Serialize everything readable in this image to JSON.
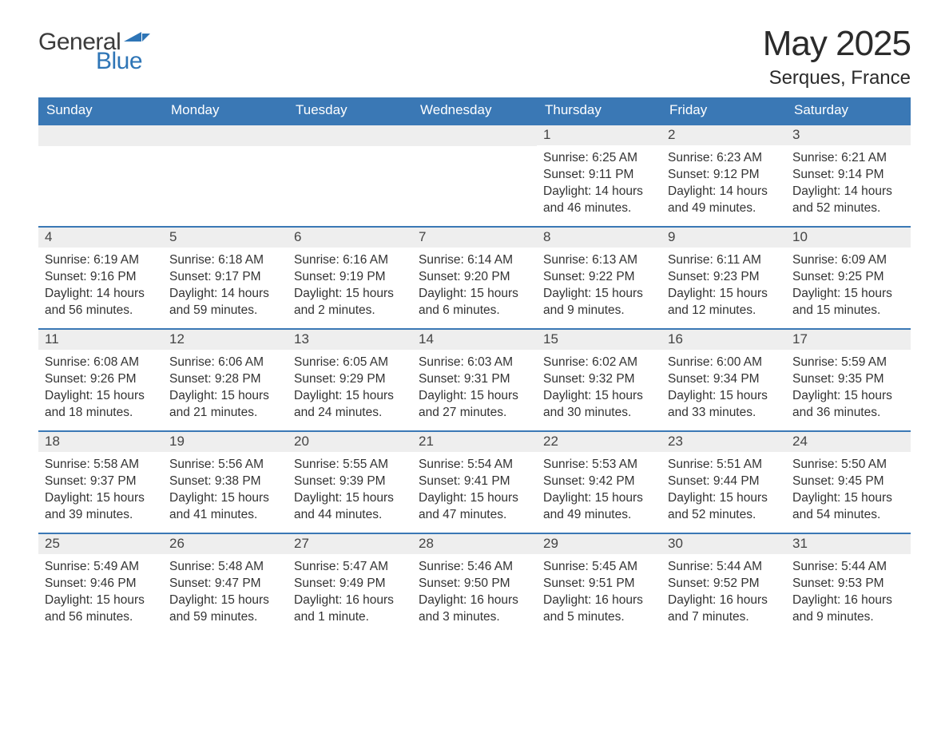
{
  "brand": {
    "part1": "General",
    "part2": "Blue",
    "text_color": "#3b3b3b",
    "accent_color": "#2e75b6"
  },
  "header": {
    "month_title": "May 2025",
    "location": "Serques, France"
  },
  "colors": {
    "header_bg": "#3a78b5",
    "header_text": "#ffffff",
    "daynum_bg": "#eeeeee",
    "daynum_text": "#444444",
    "body_text": "#333333",
    "rule": "#3a78b5",
    "page_bg": "#ffffff"
  },
  "days_of_week": [
    "Sunday",
    "Monday",
    "Tuesday",
    "Wednesday",
    "Thursday",
    "Friday",
    "Saturday"
  ],
  "labels": {
    "sunrise": "Sunrise: ",
    "sunset": "Sunset: ",
    "daylight": "Daylight: "
  },
  "weeks": [
    [
      null,
      null,
      null,
      null,
      {
        "n": "1",
        "sunrise": "6:25 AM",
        "sunset": "9:11 PM",
        "daylight": "14 hours and 46 minutes."
      },
      {
        "n": "2",
        "sunrise": "6:23 AM",
        "sunset": "9:12 PM",
        "daylight": "14 hours and 49 minutes."
      },
      {
        "n": "3",
        "sunrise": "6:21 AM",
        "sunset": "9:14 PM",
        "daylight": "14 hours and 52 minutes."
      }
    ],
    [
      {
        "n": "4",
        "sunrise": "6:19 AM",
        "sunset": "9:16 PM",
        "daylight": "14 hours and 56 minutes."
      },
      {
        "n": "5",
        "sunrise": "6:18 AM",
        "sunset": "9:17 PM",
        "daylight": "14 hours and 59 minutes."
      },
      {
        "n": "6",
        "sunrise": "6:16 AM",
        "sunset": "9:19 PM",
        "daylight": "15 hours and 2 minutes."
      },
      {
        "n": "7",
        "sunrise": "6:14 AM",
        "sunset": "9:20 PM",
        "daylight": "15 hours and 6 minutes."
      },
      {
        "n": "8",
        "sunrise": "6:13 AM",
        "sunset": "9:22 PM",
        "daylight": "15 hours and 9 minutes."
      },
      {
        "n": "9",
        "sunrise": "6:11 AM",
        "sunset": "9:23 PM",
        "daylight": "15 hours and 12 minutes."
      },
      {
        "n": "10",
        "sunrise": "6:09 AM",
        "sunset": "9:25 PM",
        "daylight": "15 hours and 15 minutes."
      }
    ],
    [
      {
        "n": "11",
        "sunrise": "6:08 AM",
        "sunset": "9:26 PM",
        "daylight": "15 hours and 18 minutes."
      },
      {
        "n": "12",
        "sunrise": "6:06 AM",
        "sunset": "9:28 PM",
        "daylight": "15 hours and 21 minutes."
      },
      {
        "n": "13",
        "sunrise": "6:05 AM",
        "sunset": "9:29 PM",
        "daylight": "15 hours and 24 minutes."
      },
      {
        "n": "14",
        "sunrise": "6:03 AM",
        "sunset": "9:31 PM",
        "daylight": "15 hours and 27 minutes."
      },
      {
        "n": "15",
        "sunrise": "6:02 AM",
        "sunset": "9:32 PM",
        "daylight": "15 hours and 30 minutes."
      },
      {
        "n": "16",
        "sunrise": "6:00 AM",
        "sunset": "9:34 PM",
        "daylight": "15 hours and 33 minutes."
      },
      {
        "n": "17",
        "sunrise": "5:59 AM",
        "sunset": "9:35 PM",
        "daylight": "15 hours and 36 minutes."
      }
    ],
    [
      {
        "n": "18",
        "sunrise": "5:58 AM",
        "sunset": "9:37 PM",
        "daylight": "15 hours and 39 minutes."
      },
      {
        "n": "19",
        "sunrise": "5:56 AM",
        "sunset": "9:38 PM",
        "daylight": "15 hours and 41 minutes."
      },
      {
        "n": "20",
        "sunrise": "5:55 AM",
        "sunset": "9:39 PM",
        "daylight": "15 hours and 44 minutes."
      },
      {
        "n": "21",
        "sunrise": "5:54 AM",
        "sunset": "9:41 PM",
        "daylight": "15 hours and 47 minutes."
      },
      {
        "n": "22",
        "sunrise": "5:53 AM",
        "sunset": "9:42 PM",
        "daylight": "15 hours and 49 minutes."
      },
      {
        "n": "23",
        "sunrise": "5:51 AM",
        "sunset": "9:44 PM",
        "daylight": "15 hours and 52 minutes."
      },
      {
        "n": "24",
        "sunrise": "5:50 AM",
        "sunset": "9:45 PM",
        "daylight": "15 hours and 54 minutes."
      }
    ],
    [
      {
        "n": "25",
        "sunrise": "5:49 AM",
        "sunset": "9:46 PM",
        "daylight": "15 hours and 56 minutes."
      },
      {
        "n": "26",
        "sunrise": "5:48 AM",
        "sunset": "9:47 PM",
        "daylight": "15 hours and 59 minutes."
      },
      {
        "n": "27",
        "sunrise": "5:47 AM",
        "sunset": "9:49 PM",
        "daylight": "16 hours and 1 minute."
      },
      {
        "n": "28",
        "sunrise": "5:46 AM",
        "sunset": "9:50 PM",
        "daylight": "16 hours and 3 minutes."
      },
      {
        "n": "29",
        "sunrise": "5:45 AM",
        "sunset": "9:51 PM",
        "daylight": "16 hours and 5 minutes."
      },
      {
        "n": "30",
        "sunrise": "5:44 AM",
        "sunset": "9:52 PM",
        "daylight": "16 hours and 7 minutes."
      },
      {
        "n": "31",
        "sunrise": "5:44 AM",
        "sunset": "9:53 PM",
        "daylight": "16 hours and 9 minutes."
      }
    ]
  ]
}
